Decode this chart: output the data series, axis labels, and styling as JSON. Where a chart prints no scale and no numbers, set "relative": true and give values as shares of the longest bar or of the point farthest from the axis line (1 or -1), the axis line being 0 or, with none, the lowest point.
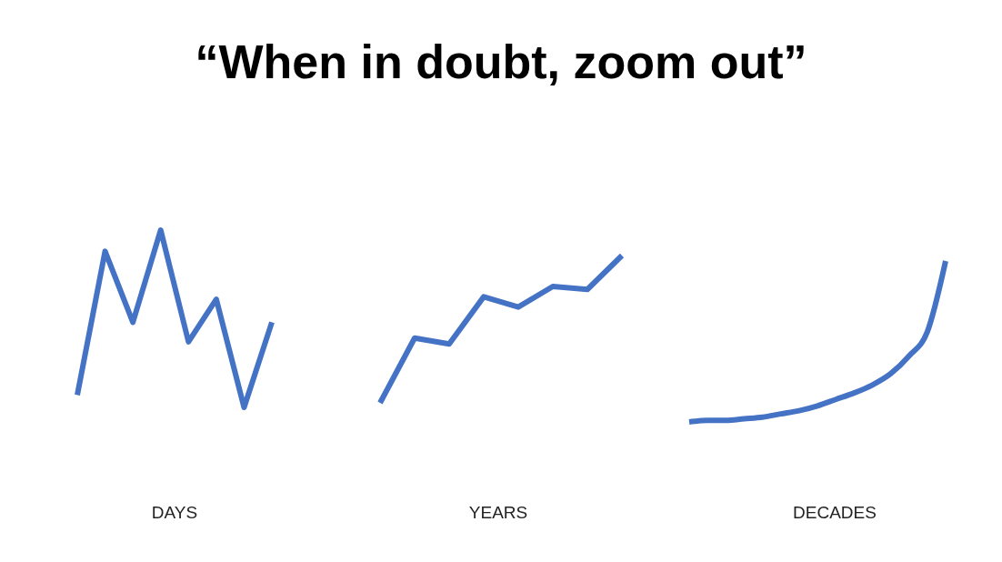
{
  "chart_data": [
    {
      "type": "line",
      "title": "“When in doubt, zoom out”",
      "xlabel": "DAYS",
      "relative": true,
      "categories": [
        null,
        null,
        null,
        null,
        null,
        null,
        null,
        null
      ],
      "series": [
        {
          "color": "#4472c4",
          "values": [
            0.07,
            0.88,
            0.48,
            1,
            0.37,
            0.61,
            0,
            0.48
          ]
        }
      ]
    },
    {
      "type": "line",
      "xlabel": "YEARS",
      "relative": true,
      "categories": [
        null,
        null,
        null,
        null,
        null,
        null,
        null,
        null
      ],
      "series": [
        {
          "color": "#4472c4",
          "values": [
            0,
            0.44,
            0.4,
            0.72,
            0.65,
            0.79,
            0.77,
            1
          ]
        }
      ]
    },
    {
      "type": "line",
      "xlabel": "DECADES",
      "relative": true,
      "categories": [
        null,
        null,
        null,
        null,
        null,
        null,
        null,
        null,
        null,
        null,
        null,
        null,
        null,
        null,
        null
      ],
      "series": [
        {
          "color": "#4472c4",
          "values": [
            0,
            0.01,
            0.01,
            0.02,
            0.03,
            0.05,
            0.07,
            0.1,
            0.14,
            0.18,
            0.23,
            0.3,
            0.41,
            0.56,
            1
          ]
        }
      ]
    }
  ]
}
